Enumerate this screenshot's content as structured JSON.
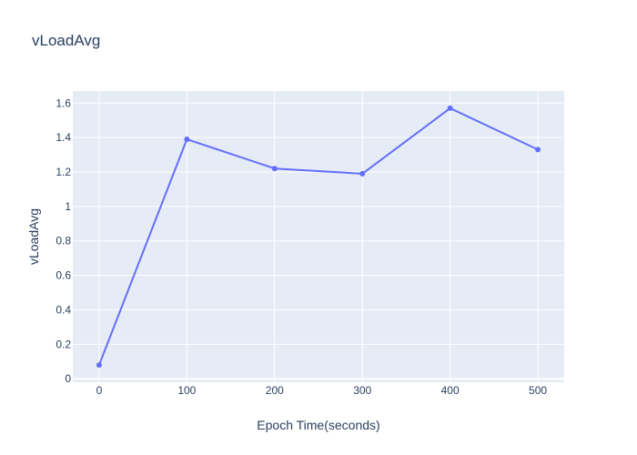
{
  "chart_data": {
    "type": "line",
    "title": "vLoadAvg",
    "xlabel": "Epoch Time(seconds)",
    "ylabel": "vLoadAvg",
    "x": [
      0,
      100,
      200,
      300,
      400,
      500
    ],
    "series": [
      {
        "values": [
          0.08,
          1.39,
          1.22,
          1.19,
          1.57,
          1.33
        ]
      }
    ],
    "xlim": [
      -30,
      530
    ],
    "ylim": [
      -0.02,
      1.67
    ],
    "xticks": [
      0,
      100,
      200,
      300,
      400,
      500
    ],
    "xtick_labels": [
      "0",
      "100",
      "200",
      "300",
      "400",
      "500"
    ],
    "yticks": [
      0,
      0.2,
      0.4,
      0.6,
      0.8,
      1,
      1.2,
      1.4,
      1.6
    ],
    "ytick_labels": [
      "0",
      "0.2",
      "0.4",
      "0.6",
      "0.8",
      "1",
      "1.2",
      "1.4",
      "1.6"
    ],
    "grid": true,
    "colors": {
      "plot_background": "#e5ecf6",
      "grid": "#ffffff",
      "line": "#636efa",
      "text": "#2a3f5f"
    }
  }
}
